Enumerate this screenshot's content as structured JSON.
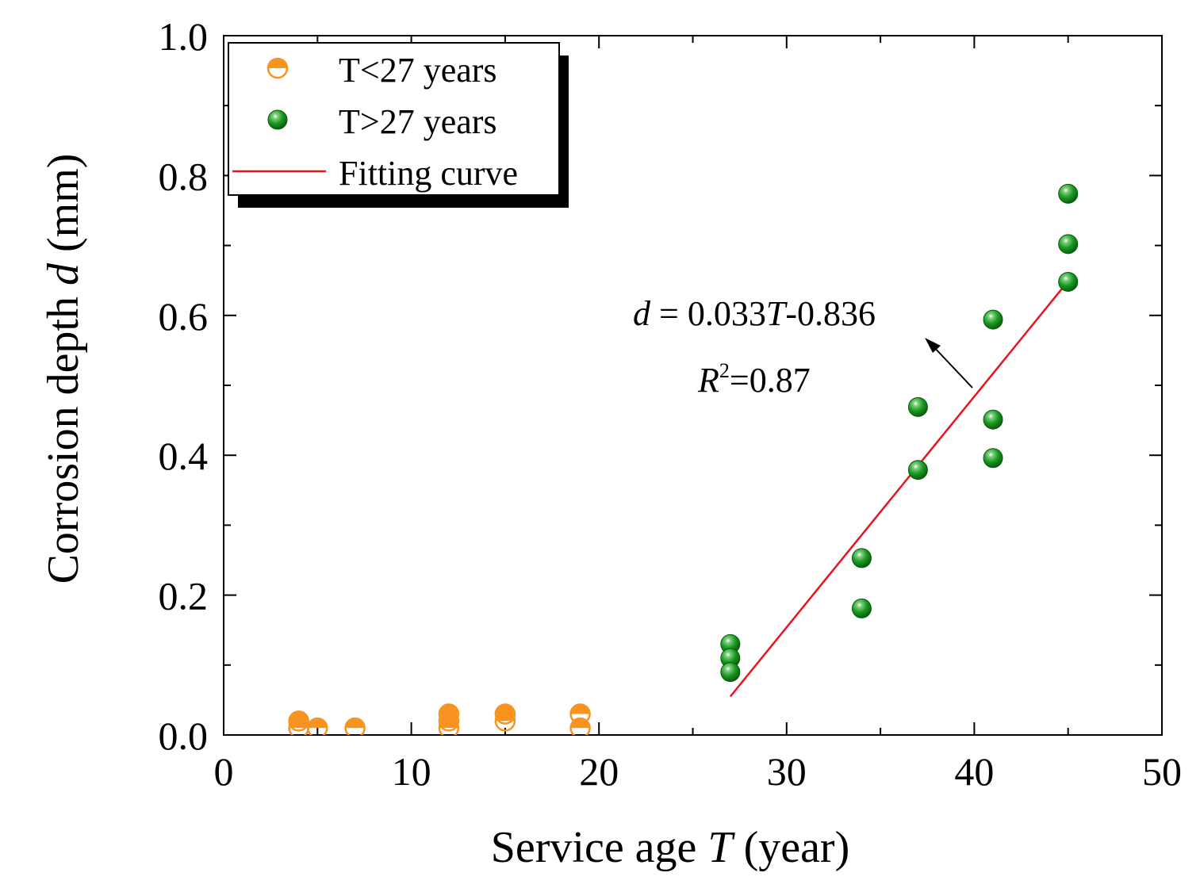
{
  "chart_data": {
    "type": "scatter",
    "title": "",
    "xlabel": {
      "prefix": "Service age ",
      "var": "T",
      "suffix": " (year)"
    },
    "ylabel": {
      "prefix": "Corrosion depth ",
      "var": "d",
      "suffix": " (mm)"
    },
    "xlim": [
      0,
      50
    ],
    "ylim": [
      0,
      1.0
    ],
    "x_ticks": [
      0,
      10,
      20,
      30,
      40,
      50
    ],
    "x_tick_labels": [
      "0",
      "10",
      "20",
      "30",
      "40",
      "50"
    ],
    "y_ticks": [
      0,
      0.2,
      0.4,
      0.6,
      0.8,
      1.0
    ],
    "y_tick_labels": [
      "0.0",
      "0.2",
      "0.4",
      "0.6",
      "0.8",
      "1.0"
    ],
    "grid": false,
    "legend_position": "top-left",
    "series": [
      {
        "name": "T<27 years",
        "marker": "half-filled-circle",
        "color": "#f7931e",
        "points": [
          [
            4,
            0.02
          ],
          [
            4,
            0.01
          ],
          [
            5,
            0.01
          ],
          [
            7,
            0.01
          ],
          [
            12,
            0.03
          ],
          [
            12,
            0.02
          ],
          [
            12,
            0.01
          ],
          [
            15,
            0.03
          ],
          [
            15,
            0.02
          ],
          [
            19,
            0.03
          ],
          [
            19,
            0.01
          ]
        ]
      },
      {
        "name": "T>27 years",
        "marker": "sphere",
        "color": "#138a1c",
        "points": [
          [
            27,
            0.13
          ],
          [
            27,
            0.11
          ],
          [
            27,
            0.09
          ],
          [
            34,
            0.253
          ],
          [
            34,
            0.181
          ],
          [
            37,
            0.469
          ],
          [
            37,
            0.379
          ],
          [
            41,
            0.594
          ],
          [
            41,
            0.451
          ],
          [
            41,
            0.396
          ],
          [
            45,
            0.774
          ],
          [
            45,
            0.702
          ],
          [
            45,
            0.648
          ]
        ]
      }
    ],
    "fit": {
      "name": "Fitting curve",
      "color": "#e8141c",
      "slope": 0.033,
      "intercept": -0.836,
      "x_range": [
        27,
        45
      ],
      "equation": {
        "var1": "d",
        "mid": " = 0.033",
        "var2": "T",
        "end": "-0.836"
      },
      "r2": {
        "var": "R",
        "sup": "2",
        "rest": "=0.87"
      }
    }
  }
}
